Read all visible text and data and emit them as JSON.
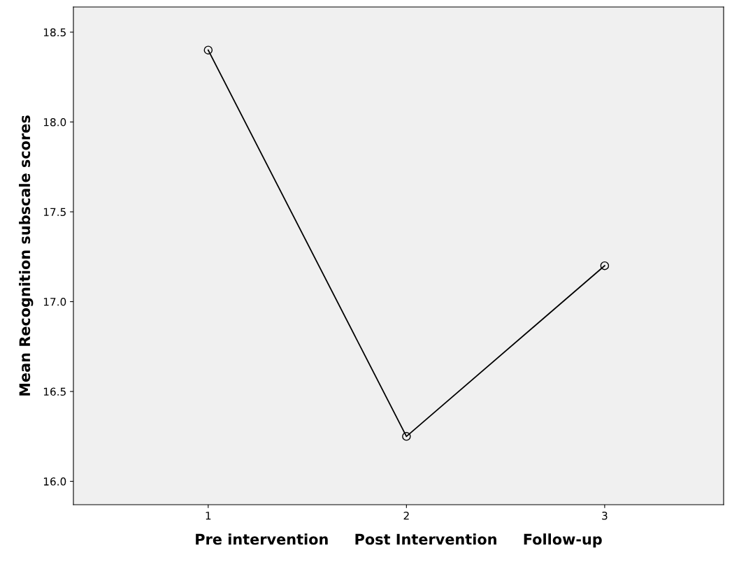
{
  "chart_data": {
    "type": "line",
    "xlabel": "Pre intervention     Post Intervention     Follow-up",
    "ylabel": "Mean Recognition subscale scores",
    "x": [
      1,
      2,
      3
    ],
    "series": [
      {
        "color": "#000000",
        "values": [
          18.4,
          16.25,
          17.2
        ]
      }
    ],
    "xlim": [
      0.32,
      3.6
    ],
    "xticks": [
      1,
      2,
      3
    ],
    "ylim": [
      15.87,
      18.64
    ],
    "yticks": [
      {
        "value": 16.0,
        "label": "16.0"
      },
      {
        "value": 16.5,
        "label": "16.5"
      },
      {
        "value": 17.0,
        "label": "17.0"
      },
      {
        "value": 17.5,
        "label": "17.5"
      },
      {
        "value": 18.0,
        "label": "18.0"
      },
      {
        "value": 18.5,
        "label": "18.5"
      }
    ],
    "marker": "circle",
    "line_style": "solid",
    "grid": false,
    "legend": false
  }
}
